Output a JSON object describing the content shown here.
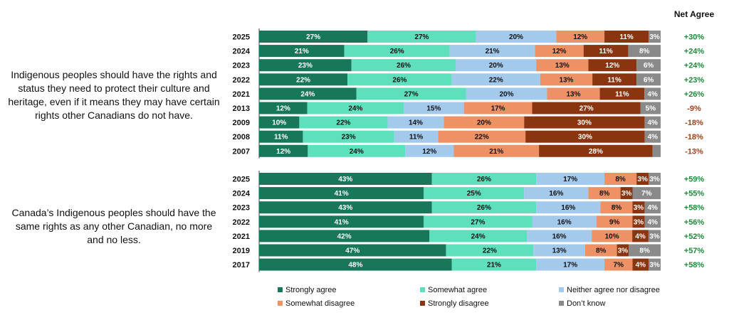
{
  "net_header": "Net Agree",
  "colors": {
    "strongly_agree": "#17775a",
    "somewhat_agree": "#5fe0bc",
    "neither": "#a3c9ec",
    "somewhat_disagree": "#ee9266",
    "strongly_disagree": "#8b3410",
    "dont_know": "#8a8a8a",
    "net_positive": "#1f8a3a",
    "net_negative": "#a2401a"
  },
  "chart_data": [
    {
      "type": "bar",
      "orientation": "horizontal-stacked",
      "title": "",
      "question": "Indigenous peoples should have the rights and status they need to protect their culture and heritage, even if it means they may have certain rights other Canadians do not have.",
      "categories": [
        "2025",
        "2024",
        "2023",
        "2022",
        "2021",
        "2013",
        "2009",
        "2008",
        "2007"
      ],
      "series": [
        {
          "name": "Strongly agree",
          "values": [
            27,
            21,
            23,
            22,
            24,
            12,
            10,
            11,
            12
          ],
          "labels": [
            "27%",
            "21%",
            "23%",
            "22%",
            "24%",
            "12%",
            "10%",
            "11%",
            "12%"
          ]
        },
        {
          "name": "Somewhat agree",
          "values": [
            27,
            26,
            26,
            26,
            27,
            24,
            22,
            23,
            24
          ],
          "labels": [
            "27%",
            "26%",
            "26%",
            "26%",
            "27%",
            "24%",
            "22%",
            "23%",
            "24%"
          ]
        },
        {
          "name": "Neither agree nor disagree",
          "values": [
            20,
            21,
            20,
            22,
            20,
            15,
            14,
            11,
            12
          ],
          "labels": [
            "20%",
            "21%",
            "20%",
            "22%",
            "20%",
            "15%",
            "14%",
            "11%",
            "12%"
          ]
        },
        {
          "name": "Somewhat disagree",
          "values": [
            12,
            12,
            13,
            13,
            13,
            17,
            20,
            22,
            21
          ],
          "labels": [
            "12%",
            "12%",
            "13%",
            "13%",
            "13%",
            "17%",
            "20%",
            "22%",
            "21%"
          ]
        },
        {
          "name": "Strongly disagree",
          "values": [
            11,
            11,
            12,
            11,
            11,
            27,
            30,
            30,
            28
          ],
          "labels": [
            "11%",
            "11%",
            "12%",
            "11%",
            "11%",
            "27%",
            "30%",
            "30%",
            "28%"
          ]
        },
        {
          "name": "Don't know",
          "values": [
            3,
            8,
            6,
            6,
            4,
            5,
            4,
            4,
            2
          ],
          "labels": [
            "3%",
            "8%",
            "6%",
            "6%",
            "4%",
            "5%",
            "4%",
            "4%",
            ""
          ]
        }
      ],
      "net_agree": [
        "+30%",
        "+24%",
        "+24%",
        "+23%",
        "+26%",
        "-9%",
        "-18%",
        "-18%",
        "-13%"
      ],
      "xlim": [
        0,
        100
      ]
    },
    {
      "type": "bar",
      "orientation": "horizontal-stacked",
      "title": "",
      "question": "Canada’s Indigenous peoples should have the same rights as any other Canadian, no more and no less.",
      "categories": [
        "2025",
        "2024",
        "2023",
        "2022",
        "2021",
        "2019",
        "2017"
      ],
      "series": [
        {
          "name": "Strongly agree",
          "values": [
            43,
            41,
            43,
            41,
            42,
            47,
            48
          ],
          "labels": [
            "43%",
            "41%",
            "43%",
            "41%",
            "42%",
            "47%",
            "48%"
          ]
        },
        {
          "name": "Somewhat agree",
          "values": [
            26,
            25,
            26,
            27,
            24,
            22,
            21
          ],
          "labels": [
            "26%",
            "25%",
            "26%",
            "27%",
            "24%",
            "22%",
            "21%"
          ]
        },
        {
          "name": "Neither agree nor disagree",
          "values": [
            17,
            16,
            16,
            16,
            16,
            13,
            17
          ],
          "labels": [
            "17%",
            "16%",
            "16%",
            "16%",
            "16%",
            "13%",
            "17%"
          ]
        },
        {
          "name": "Somewhat disagree",
          "values": [
            8,
            8,
            8,
            9,
            10,
            8,
            7
          ],
          "labels": [
            "8%",
            "8%",
            "8%",
            "9%",
            "10%",
            "8%",
            "7%"
          ]
        },
        {
          "name": "Strongly disagree",
          "values": [
            3,
            3,
            3,
            3,
            4,
            3,
            4
          ],
          "labels": [
            "3%",
            "3%",
            "3%",
            "3%",
            "4%",
            "3%",
            "4%"
          ]
        },
        {
          "name": "Don't know",
          "values": [
            3,
            7,
            4,
            4,
            3,
            8,
            3
          ],
          "labels": [
            "3%",
            "7%",
            "4%",
            "4%",
            "3%",
            "8%",
            "3%"
          ]
        }
      ],
      "net_agree": [
        "+59%",
        "+55%",
        "+58%",
        "+56%",
        "+52%",
        "+57%",
        "+58%"
      ],
      "xlim": [
        0,
        100
      ]
    }
  ],
  "legend": {
    "placement": "bottom",
    "items": [
      {
        "label": "Strongly agree",
        "color": "#17775a"
      },
      {
        "label": "Somewhat agree",
        "color": "#5fe0bc"
      },
      {
        "label": "Neither agree nor disagree",
        "color": "#a3c9ec"
      },
      {
        "label": "Somewhat disagree",
        "color": "#ee9266"
      },
      {
        "label": "Strongly disagree",
        "color": "#8b3410"
      },
      {
        "label": "Don’t know",
        "color": "#8a8a8a"
      }
    ]
  }
}
